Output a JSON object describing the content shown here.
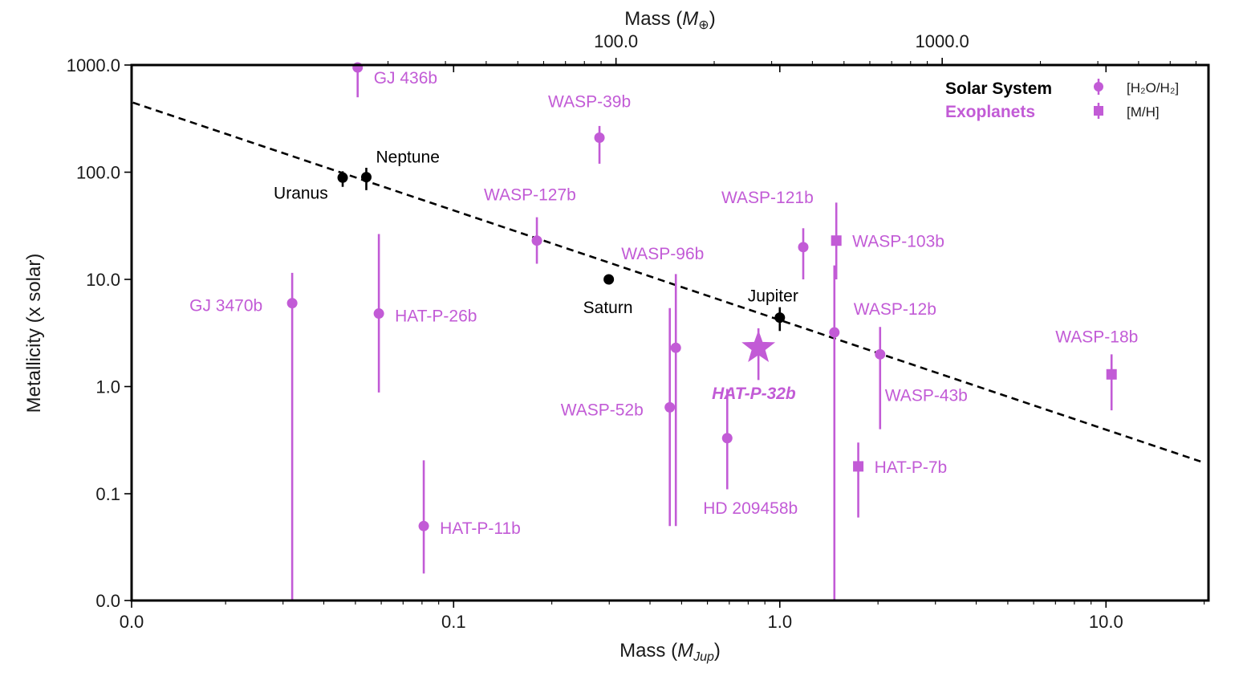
{
  "chart_data": {
    "type": "scatter",
    "xlabel_main": "Mass (",
    "xlabel_sym": "M",
    "xlabel_sub": "Jup",
    "xlabel_close": ")",
    "top_xlabel_main": "Mass (",
    "top_xlabel_sym": "M",
    "top_xlabel_sub": "⊕",
    "top_xlabel_close": ")",
    "ylabel": "Metallicity (x solar)",
    "x_scale": "log",
    "y_scale": "log",
    "x_ticks": [
      "0.0",
      "0.1",
      "1.0",
      "10.0"
    ],
    "top_x_ticks": [
      "100.0",
      "1000.0"
    ],
    "y_ticks": [
      "1000.0",
      "100.0",
      "10.0",
      "1.0",
      "0.1",
      "0.0"
    ],
    "legend": {
      "group1": "Solar System",
      "group2": "Exoplanets",
      "marker1": "[H₂O/H₂]",
      "marker2": "[M/H]"
    },
    "colors": {
      "solar": "#000000",
      "exo": "#c25bd6",
      "fit": "#000000"
    },
    "trend": {
      "x": [
        0.0104,
        19.5
      ],
      "y": [
        446,
        0.2
      ],
      "style": "dashed"
    },
    "solar_system": [
      {
        "name": "Uranus",
        "x": 0.0457,
        "y": 89,
        "ylo": 73,
        "yhi": 102
      },
      {
        "name": "Neptune",
        "x": 0.054,
        "y": 90,
        "ylo": 68,
        "yhi": 110
      },
      {
        "name": "Saturn",
        "x": 0.299,
        "y": 10.0,
        "ylo": 10.0,
        "yhi": 10.0
      },
      {
        "name": "Jupiter",
        "x": 1.0,
        "y": 4.4,
        "ylo": 3.3,
        "yhi": 5.5
      }
    ],
    "exoplanets": [
      {
        "name": "GJ 436b",
        "x": 0.0508,
        "y": 950,
        "ylo": 500,
        "yhi": 1100,
        "marker": "circle"
      },
      {
        "name": "GJ 3470b",
        "x": 0.032,
        "y": 6.0,
        "ylo": 0.0009,
        "yhi": 11.5,
        "marker": "circle"
      },
      {
        "name": "HAT-P-26b",
        "x": 0.059,
        "y": 4.8,
        "ylo": 0.88,
        "yhi": 26.5,
        "marker": "circle"
      },
      {
        "name": "HAT-P-11b",
        "x": 0.081,
        "y": 0.05,
        "ylo": 0.018,
        "yhi": 0.205,
        "marker": "circle"
      },
      {
        "name": "WASP-127b",
        "x": 0.18,
        "y": 23,
        "ylo": 14,
        "yhi": 38,
        "marker": "circle"
      },
      {
        "name": "WASP-39b",
        "x": 0.28,
        "y": 210,
        "ylo": 120,
        "yhi": 270,
        "marker": "circle"
      },
      {
        "name": "WASP-96b",
        "x": 0.48,
        "y": 2.3,
        "ylo": 0.05,
        "yhi": 11.2,
        "marker": "circle"
      },
      {
        "name": "WASP-52b",
        "x": 0.46,
        "y": 0.64,
        "ylo": 0.05,
        "yhi": 5.4,
        "marker": "circle"
      },
      {
        "name": "HD 209458b",
        "x": 0.69,
        "y": 0.33,
        "ylo": 0.11,
        "yhi": 0.95,
        "marker": "circle"
      },
      {
        "name": "HAT-P-32b",
        "x": 0.86,
        "y": 2.3,
        "ylo": 1.15,
        "yhi": 3.5,
        "marker": "star"
      },
      {
        "name": "WASP-121b",
        "x": 1.18,
        "y": 20,
        "ylo": 10,
        "yhi": 30,
        "marker": "circle"
      },
      {
        "name": "WASP-12b",
        "x": 1.47,
        "y": 3.2,
        "ylo": 0.0009,
        "yhi": 13.5,
        "marker": "circle"
      },
      {
        "name": "WASP-103b",
        "x": 1.49,
        "y": 23,
        "ylo": 10,
        "yhi": 52,
        "marker": "square"
      },
      {
        "name": "WASP-43b",
        "x": 2.03,
        "y": 2.0,
        "ylo": 0.4,
        "yhi": 3.6,
        "marker": "circle"
      },
      {
        "name": "HAT-P-7b",
        "x": 1.74,
        "y": 0.18,
        "ylo": 0.06,
        "yhi": 0.3,
        "marker": "square"
      },
      {
        "name": "WASP-18b",
        "x": 10.4,
        "y": 1.3,
        "ylo": 0.6,
        "yhi": 2.0,
        "marker": "square"
      }
    ]
  }
}
